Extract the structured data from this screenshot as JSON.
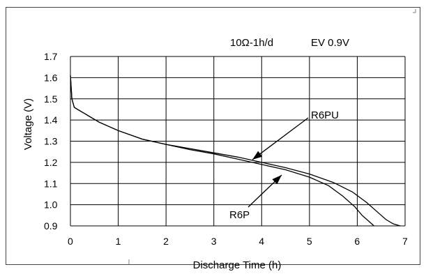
{
  "chart_data": {
    "type": "line",
    "title": "",
    "conditions": "10Ω-1h/d",
    "end_voltage": "EV 0.9V",
    "xlabel": "Discharge Time (h)",
    "ylabel": "Voltage (V)",
    "xlim": [
      0,
      7
    ],
    "ylim": [
      0.9,
      1.7
    ],
    "xticks": [
      "0",
      "1",
      "2",
      "3",
      "4",
      "5",
      "6",
      "7"
    ],
    "yticks": [
      "0.9",
      "1.0",
      "1.1",
      "1.2",
      "1.3",
      "1.4",
      "1.5",
      "1.6",
      "1.7"
    ],
    "grid": true,
    "series": [
      {
        "name": "R6PU",
        "x": [
          0,
          0.03,
          0.08,
          0.15,
          0.3,
          0.6,
          1.0,
          1.5,
          2.0,
          2.5,
          3.0,
          3.5,
          4.0,
          4.5,
          5.0,
          5.5,
          5.9,
          6.2,
          6.45,
          6.6,
          6.75,
          6.9
        ],
        "y": [
          1.61,
          1.5,
          1.46,
          1.45,
          1.43,
          1.39,
          1.35,
          1.31,
          1.285,
          1.265,
          1.245,
          1.225,
          1.2,
          1.175,
          1.145,
          1.105,
          1.06,
          1.01,
          0.96,
          0.93,
          0.91,
          0.9
        ]
      },
      {
        "name": "R6P",
        "x": [
          0,
          0.03,
          0.08,
          0.15,
          0.3,
          0.6,
          1.0,
          1.5,
          2.0,
          2.5,
          3.0,
          3.5,
          4.0,
          4.5,
          5.0,
          5.4,
          5.7,
          5.95,
          6.1,
          6.25,
          6.35
        ],
        "y": [
          1.61,
          1.5,
          1.46,
          1.45,
          1.43,
          1.39,
          1.35,
          1.31,
          1.285,
          1.26,
          1.24,
          1.215,
          1.19,
          1.165,
          1.13,
          1.09,
          1.04,
          0.99,
          0.95,
          0.92,
          0.9
        ]
      }
    ]
  }
}
